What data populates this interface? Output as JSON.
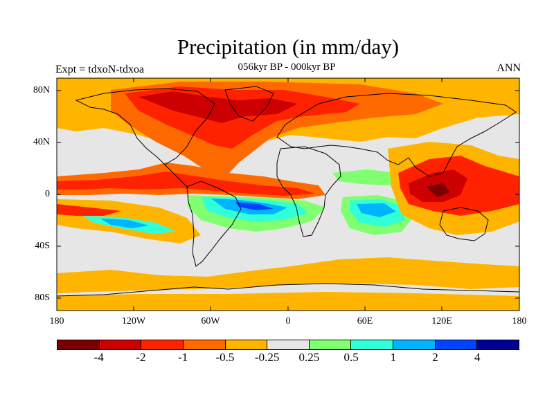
{
  "title": "Precipitation (in mm/day)",
  "subtitle": "056kyr BP - 000kyr BP",
  "left_label": "Expt = tdxoN-tdxoa",
  "right_label": "ANN",
  "lat_labels": [
    "80N",
    "40N",
    "0",
    "40S",
    "80S"
  ],
  "lon_labels": [
    "180",
    "120W",
    "60W",
    "0",
    "60E",
    "120E",
    "180"
  ],
  "colorbar": {
    "labels": [
      "-4",
      "-2",
      "-1",
      "-0.5",
      "-0.25",
      "0.25",
      "0.5",
      "1",
      "2",
      "4"
    ],
    "colors": [
      "#7a0000",
      "#cc0000",
      "#ff2200",
      "#ff6a00",
      "#ffb400",
      "#e6e6e6",
      "#80ff70",
      "#30ffd8",
      "#00b4ff",
      "#0044ff",
      "#000090"
    ]
  }
}
